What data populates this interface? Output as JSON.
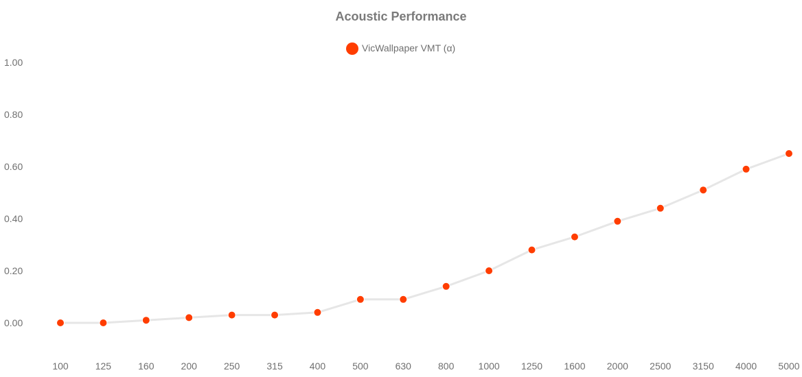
{
  "chart_data": {
    "type": "line",
    "title": "Acoustic Performance",
    "xlabel": "",
    "ylabel": "",
    "categories": [
      "100",
      "125",
      "160",
      "200",
      "250",
      "315",
      "400",
      "500",
      "630",
      "800",
      "1000",
      "1250",
      "1600",
      "2000",
      "2500",
      "3150",
      "4000",
      "5000"
    ],
    "y_ticks": [
      "0.00",
      "0.20",
      "0.40",
      "0.60",
      "0.80",
      "1.00"
    ],
    "ylim": [
      -0.12,
      1.0
    ],
    "grid": false,
    "legend_position": "top-center",
    "series": [
      {
        "name": "VicWallpaper VMT (α)",
        "values": [
          0.0,
          0.0,
          0.01,
          0.02,
          0.03,
          0.03,
          0.04,
          0.09,
          0.09,
          0.14,
          0.2,
          0.28,
          0.33,
          0.39,
          0.44,
          0.51,
          0.59,
          0.65
        ],
        "marker_color": "#ff3d00",
        "line_color": "#e6e6e6"
      }
    ]
  }
}
